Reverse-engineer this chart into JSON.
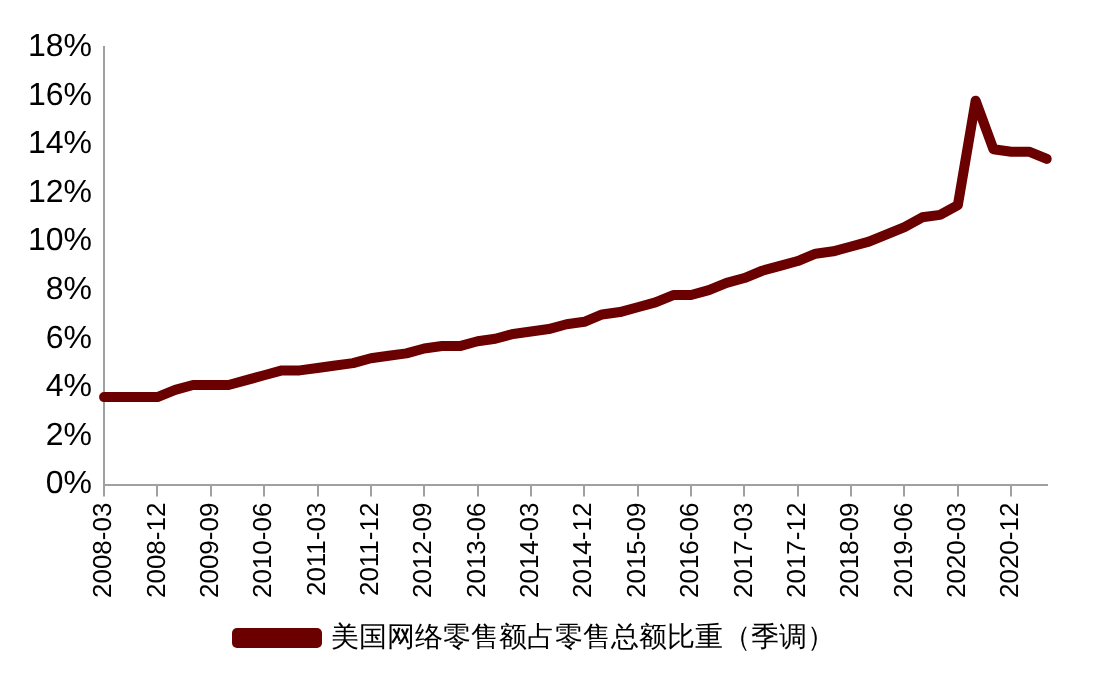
{
  "chart_data": {
    "type": "line",
    "categories": [
      "2008-03",
      null,
      null,
      "2008-12",
      null,
      null,
      "2009-09",
      null,
      null,
      "2010-06",
      null,
      null,
      "2011-03",
      null,
      null,
      "2011-12",
      null,
      null,
      "2012-09",
      null,
      null,
      "2013-06",
      null,
      null,
      "2014-03",
      null,
      null,
      "2014-12",
      null,
      null,
      "2015-09",
      null,
      null,
      "2016-06",
      null,
      null,
      "2017-03",
      null,
      null,
      "2017-12",
      null,
      null,
      "2018-09",
      null,
      null,
      "2019-06",
      null,
      null,
      "2020-03",
      null,
      null,
      "2020-12",
      null,
      null
    ],
    "series": [
      {
        "name": "美国网络零售额占零售总额比重（季调）",
        "color": "#6b0000",
        "values": [
          3.6,
          3.6,
          3.6,
          3.6,
          3.9,
          4.1,
          4.1,
          4.1,
          4.3,
          4.5,
          4.7,
          4.7,
          4.8,
          4.9,
          5.0,
          5.2,
          5.3,
          5.4,
          5.6,
          5.7,
          5.7,
          5.9,
          6.0,
          6.2,
          6.3,
          6.4,
          6.6,
          6.7,
          7.0,
          7.1,
          7.3,
          7.5,
          7.8,
          7.8,
          8.0,
          8.3,
          8.5,
          8.8,
          9.0,
          9.2,
          9.5,
          9.6,
          9.8,
          10.0,
          10.3,
          10.6,
          11.0,
          11.1,
          11.5,
          15.8,
          13.8,
          13.7,
          13.7,
          13.4
        ]
      }
    ],
    "ylim": [
      0,
      18
    ],
    "yticks": [
      {
        "value": 0,
        "label": "0%"
      },
      {
        "value": 2,
        "label": "2%"
      },
      {
        "value": 4,
        "label": "4%"
      },
      {
        "value": 6,
        "label": "6%"
      },
      {
        "value": 8,
        "label": "8%"
      },
      {
        "value": 10,
        "label": "10%"
      },
      {
        "value": 12,
        "label": "12%"
      },
      {
        "value": 14,
        "label": "14%"
      },
      {
        "value": 16,
        "label": "16%"
      },
      {
        "value": 18,
        "label": "18%"
      }
    ],
    "grid": false,
    "legend": "bottom",
    "marker": "none",
    "line_style": "solid"
  }
}
